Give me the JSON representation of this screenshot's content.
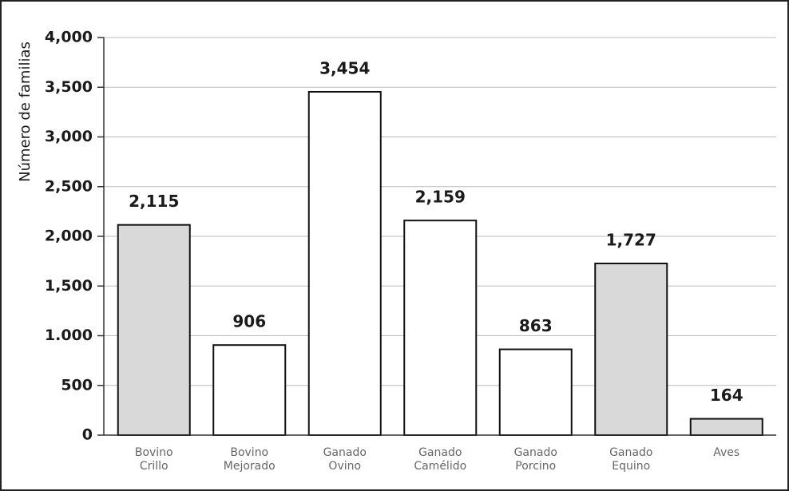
{
  "chart_data": {
    "type": "bar",
    "y_label": "Número de familias",
    "categories": [
      "Bovino Crillo",
      "Bovino Mejorado",
      "Ganado Ovino",
      "Ganado Camélido",
      "Ganado Porcino",
      "Ganado Equino",
      "Aves"
    ],
    "values": [
      2115,
      906,
      3454,
      2159,
      863,
      1727,
      164
    ],
    "value_labels": [
      "2,115",
      "906",
      "3,454",
      "2,159",
      "863",
      "1,727",
      "164"
    ],
    "colors": [
      "#d9d9d9",
      "#ffffff",
      "#ffffff",
      "#ffffff",
      "#ffffff",
      "#d9d9d9",
      "#d9d9d9"
    ],
    "ylim": [
      0,
      4000
    ],
    "yticks": [
      0,
      500,
      {
        "value": 1000,
        "label": "1.000"
      },
      {
        "value": 1500,
        "label": "1,500"
      },
      {
        "value": 2000,
        "label": "2,000"
      },
      {
        "value": 2500,
        "label": "2,500"
      },
      {
        "value": 3000,
        "label": "3,000"
      },
      {
        "value": 3500,
        "label": "3,500"
      },
      {
        "value": 4000,
        "label": "4,000"
      }
    ],
    "grid": true
  }
}
